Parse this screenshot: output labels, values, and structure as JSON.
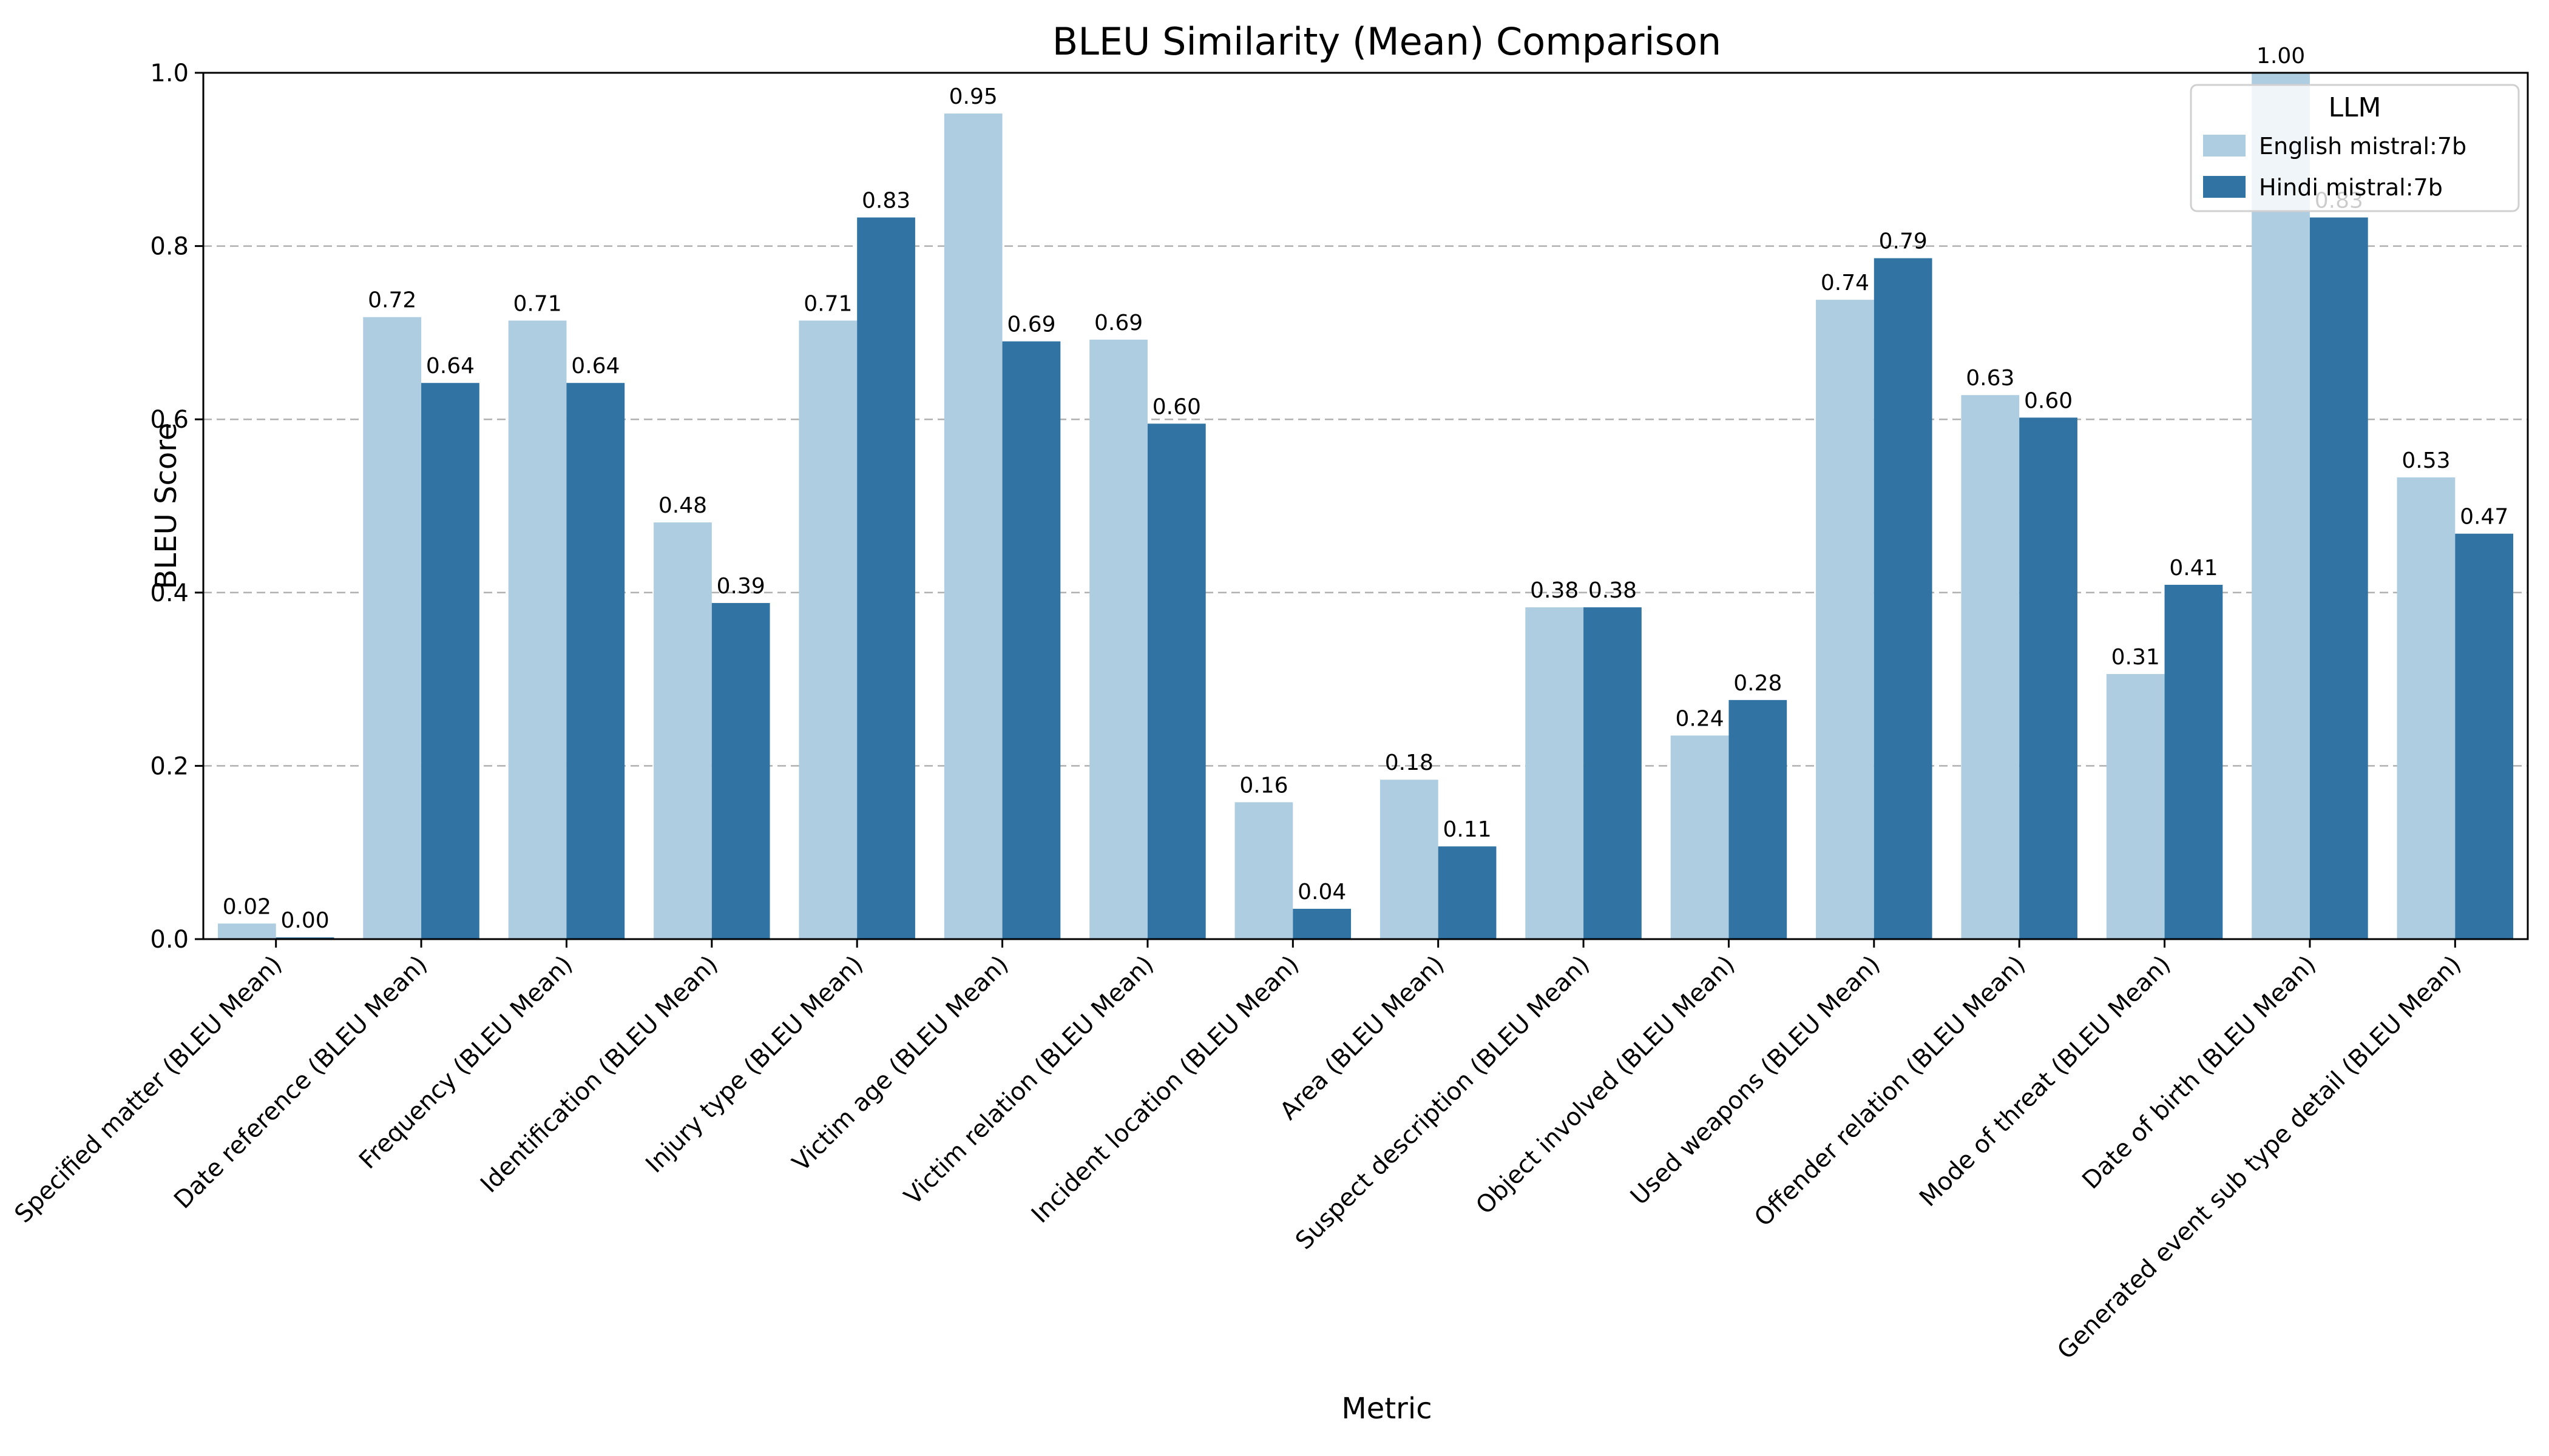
{
  "chart_data": {
    "type": "bar",
    "title": "BLEU Similarity (Mean) Comparison",
    "xlabel": "Metric",
    "ylabel": "BLEU Score",
    "ylim": [
      0,
      1.0
    ],
    "yticks": [
      "0.0",
      "0.2",
      "0.4",
      "0.6",
      "0.8",
      "1.0"
    ],
    "grid": "y-dashed",
    "legend": {
      "title": "LLM",
      "position": "top-right"
    },
    "categories": [
      "Specified matter (BLEU Mean)",
      "Date reference (BLEU Mean)",
      "Frequency (BLEU Mean)",
      "Identification (BLEU Mean)",
      "Injury type (BLEU Mean)",
      "Victim age (BLEU Mean)",
      "Victim relation (BLEU Mean)",
      "Incident location (BLEU Mean)",
      "Area (BLEU Mean)",
      "Suspect description (BLEU Mean)",
      "Object involved (BLEU Mean)",
      "Used weapons (BLEU Mean)",
      "Offender relation (BLEU Mean)",
      "Mode of threat (BLEU Mean)",
      "Date of birth (BLEU Mean)",
      "Generated event sub type detail (BLEU Mean)"
    ],
    "series": [
      {
        "name": "English mistral:7b",
        "color": "#aecde0",
        "values": [
          0.018,
          0.718,
          0.714,
          0.481,
          0.714,
          0.953,
          0.692,
          0.158,
          0.184,
          0.383,
          0.235,
          0.738,
          0.628,
          0.306,
          1.0,
          0.533
        ],
        "labels": [
          "0.02",
          "0.72",
          "0.71",
          "0.48",
          "0.71",
          "0.95",
          "0.69",
          "0.16",
          "0.18",
          "0.38",
          "0.24",
          "0.74",
          "0.63",
          "0.31",
          "1.00",
          "0.53"
        ]
      },
      {
        "name": "Hindi mistral:7b",
        "color": "#3174a3",
        "values": [
          0.002,
          0.642,
          0.642,
          0.388,
          0.833,
          0.69,
          0.595,
          0.035,
          0.107,
          0.383,
          0.276,
          0.786,
          0.602,
          0.409,
          0.833,
          0.468
        ],
        "labels": [
          "0.00",
          "0.64",
          "0.64",
          "0.39",
          "0.83",
          "0.69",
          "0.60",
          "0.04",
          "0.11",
          "0.38",
          "0.28",
          "0.79",
          "0.60",
          "0.41",
          "0.83",
          "0.47"
        ]
      }
    ]
  }
}
